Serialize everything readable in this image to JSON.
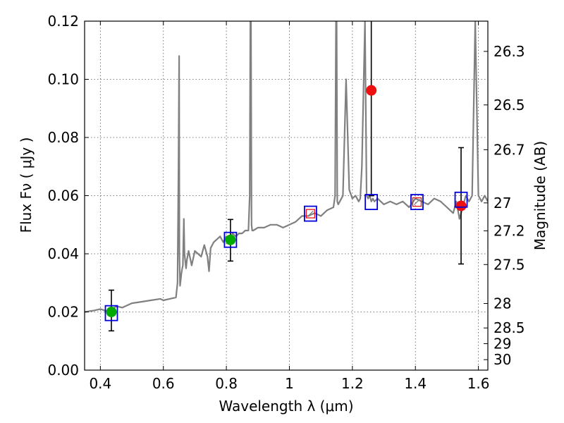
{
  "chart_data": {
    "type": "line",
    "xlabel": "Wavelength  λ (μm)",
    "ylabel": "Flux  Fν  ( μJy )",
    "y2label": "Magnitude (AB)",
    "xlim": [
      0.35,
      1.63
    ],
    "ylim": [
      0.0,
      0.12
    ],
    "x_ticks": [
      0.4,
      0.6,
      0.8,
      1.0,
      1.2,
      1.4,
      1.6
    ],
    "x_tick_labels": [
      "0.4",
      "0.6",
      "0.8",
      "1",
      "1.2",
      "1.4",
      "1.6"
    ],
    "y_ticks": [
      0.0,
      0.02,
      0.04,
      0.06,
      0.08,
      0.1,
      0.12
    ],
    "y_tick_labels": [
      "0.00",
      "0.02",
      "0.04",
      "0.06",
      "0.08",
      "0.10",
      "0.12"
    ],
    "y2_ticks": [
      {
        "label": "26.3",
        "flux": 0.1096
      },
      {
        "label": "26.5",
        "flux": 0.0912
      },
      {
        "label": "26.7",
        "flux": 0.0758
      },
      {
        "label": "27",
        "flux": 0.0575
      },
      {
        "label": "27.2",
        "flux": 0.0479
      },
      {
        "label": "27.5",
        "flux": 0.0363
      },
      {
        "label": "28",
        "flux": 0.0229
      },
      {
        "label": "28.5",
        "flux": 0.0145
      },
      {
        "label": "29",
        "flux": 0.0091
      },
      {
        "label": "30",
        "flux": 0.0036
      }
    ],
    "grid": true,
    "colors": {
      "spectrum": "#808080",
      "detected": "#00aa00",
      "undetected": "#ee1111",
      "model_box": "#0000dd",
      "errorbar": "#000000"
    },
    "series": [
      {
        "type": "line",
        "x": [
          0.35,
          0.38,
          0.4,
          0.43,
          0.45,
          0.47,
          0.5,
          0.53,
          0.56,
          0.59,
          0.6,
          0.62,
          0.64,
          0.645,
          0.648,
          0.65,
          0.651,
          0.653,
          0.655,
          0.657,
          0.66,
          0.662,
          0.665,
          0.667,
          0.67,
          0.672,
          0.675,
          0.68,
          0.69,
          0.7,
          0.71,
          0.72,
          0.73,
          0.74,
          0.745,
          0.75,
          0.76,
          0.77,
          0.78,
          0.79,
          0.8,
          0.81,
          0.82,
          0.83,
          0.84,
          0.85,
          0.86,
          0.87,
          0.874,
          0.876,
          0.878,
          0.88,
          0.882,
          0.885,
          0.9,
          0.92,
          0.94,
          0.96,
          0.98,
          1.0,
          1.02,
          1.04,
          1.06,
          1.08,
          1.1,
          1.12,
          1.14,
          1.145,
          1.148,
          1.15,
          1.152,
          1.155,
          1.16,
          1.17,
          1.18,
          1.19,
          1.2,
          1.21,
          1.22,
          1.225,
          1.23,
          1.24,
          1.245,
          1.25,
          1.255,
          1.26,
          1.265,
          1.27,
          1.28,
          1.3,
          1.32,
          1.34,
          1.36,
          1.38,
          1.4,
          1.42,
          1.44,
          1.46,
          1.48,
          1.5,
          1.52,
          1.53,
          1.54,
          1.55,
          1.56,
          1.57,
          1.58,
          1.59,
          1.6,
          1.61,
          1.62,
          1.63
        ],
        "y": [
          0.02,
          0.0205,
          0.021,
          0.02,
          0.022,
          0.0215,
          0.023,
          0.0235,
          0.024,
          0.0245,
          0.024,
          0.0245,
          0.025,
          0.03,
          0.07,
          0.108,
          0.04,
          0.029,
          0.031,
          0.033,
          0.035,
          0.036,
          0.052,
          0.04,
          0.037,
          0.035,
          0.038,
          0.041,
          0.036,
          0.041,
          0.04,
          0.039,
          0.043,
          0.039,
          0.034,
          0.042,
          0.044,
          0.045,
          0.046,
          0.044,
          0.046,
          0.045,
          0.047,
          0.046,
          0.047,
          0.047,
          0.048,
          0.048,
          0.06,
          0.12,
          0.12,
          0.05,
          0.048,
          0.048,
          0.049,
          0.049,
          0.05,
          0.05,
          0.049,
          0.05,
          0.051,
          0.053,
          0.053,
          0.054,
          0.053,
          0.055,
          0.056,
          0.06,
          0.12,
          0.12,
          0.058,
          0.057,
          0.058,
          0.06,
          0.1,
          0.062,
          0.059,
          0.06,
          0.058,
          0.059,
          0.07,
          0.12,
          0.06,
          0.059,
          0.06,
          0.058,
          0.059,
          0.058,
          0.059,
          0.057,
          0.058,
          0.057,
          0.058,
          0.056,
          0.059,
          0.058,
          0.057,
          0.059,
          0.058,
          0.056,
          0.054,
          0.058,
          0.052,
          0.056,
          0.06,
          0.058,
          0.06,
          0.12,
          0.06,
          0.058,
          0.06,
          0.058
        ]
      },
      {
        "type": "scatter",
        "name": "",
        "x": [
          0.435,
          0.813
        ],
        "y": [
          0.02,
          0.0448
        ],
        "yerr_low": [
          0.0135,
          0.0375
        ],
        "yerr_high": [
          0.0275,
          0.0518
        ],
        "color": "detected"
      },
      {
        "type": "scatter",
        "name": "",
        "x": [
          1.26,
          1.545
        ],
        "y": [
          0.0962,
          0.0565
        ],
        "yerr_low": [
          0.06,
          0.0365
        ],
        "yerr_high": [
          0.12,
          0.0765
        ],
        "color": "undetected"
      },
      {
        "type": "model_boxes",
        "x": [
          0.435,
          0.813,
          1.067,
          1.26,
          1.405,
          1.545
        ],
        "y": [
          0.0196,
          0.0448,
          0.0538,
          0.0578,
          0.0578,
          0.0586
        ]
      },
      {
        "type": "model_squares_small",
        "x": [
          1.067,
          1.405
        ],
        "y": [
          0.0538,
          0.0578
        ]
      }
    ]
  }
}
